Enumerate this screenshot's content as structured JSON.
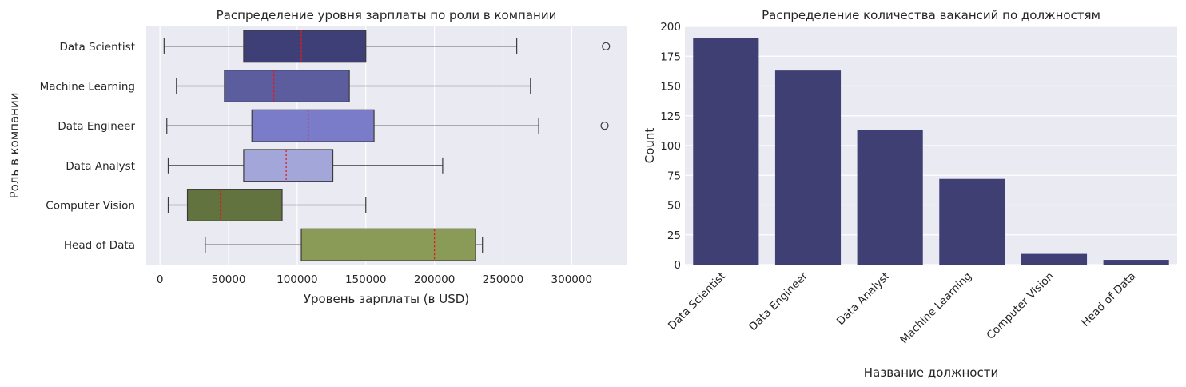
{
  "chart_data": [
    {
      "type": "box",
      "orientation": "horizontal",
      "title": "Распределение уровня зарплаты по роли в компании",
      "xlabel": "Уровень зарплаты (в USD)",
      "ylabel": "Роль в компании",
      "xlim": [
        -10000,
        340000
      ],
      "xticks": [
        0,
        50000,
        100000,
        150000,
        200000,
        250000,
        300000
      ],
      "xtick_labels": [
        "0",
        "50000",
        "100000",
        "150000",
        "200000",
        "250000",
        "300000"
      ],
      "grid": true,
      "median_line_color": "#e41a1c",
      "series": [
        {
          "name": "Data Scientist",
          "whisker_low": 3000,
          "q1": 61000,
          "median": 103000,
          "q3": 150000,
          "whisker_high": 260000,
          "outliers": [
            325000
          ],
          "color": "#3f3f77"
        },
        {
          "name": "Machine Learning",
          "whisker_low": 12000,
          "q1": 47000,
          "median": 83000,
          "q3": 138000,
          "whisker_high": 270000,
          "outliers": [],
          "color": "#5b5d9e"
        },
        {
          "name": "Data Engineer",
          "whisker_low": 5000,
          "q1": 67000,
          "median": 108000,
          "q3": 156000,
          "whisker_high": 276000,
          "outliers": [
            324000
          ],
          "color": "#7a7bc9"
        },
        {
          "name": "Data Analyst",
          "whisker_low": 6000,
          "q1": 61000,
          "median": 92000,
          "q3": 126000,
          "whisker_high": 206000,
          "outliers": [],
          "color": "#a3a6d8"
        },
        {
          "name": "Computer Vision",
          "whisker_low": 6000,
          "q1": 20000,
          "median": 44000,
          "q3": 89000,
          "whisker_high": 150000,
          "outliers": [],
          "color": "#627340"
        },
        {
          "name": "Head of Data",
          "whisker_low": 33000,
          "q1": 103000,
          "median": 200000,
          "q3": 230000,
          "whisker_high": 235000,
          "outliers": [],
          "color": "#8a9a57"
        }
      ]
    },
    {
      "type": "bar",
      "title": "Распределение количества вакансий по должностям",
      "xlabel": "Название должности",
      "ylabel": "Count",
      "ylim": [
        0,
        200
      ],
      "yticks": [
        0,
        25,
        50,
        75,
        100,
        125,
        150,
        175,
        200
      ],
      "categories": [
        "Data Scientist",
        "Data Engineer",
        "Data Analyst",
        "Machine Learning",
        "Computer Vision",
        "Head of Data"
      ],
      "values": [
        190,
        163,
        113,
        72,
        9,
        4
      ],
      "color": "#3f3f74",
      "grid": true
    }
  ]
}
